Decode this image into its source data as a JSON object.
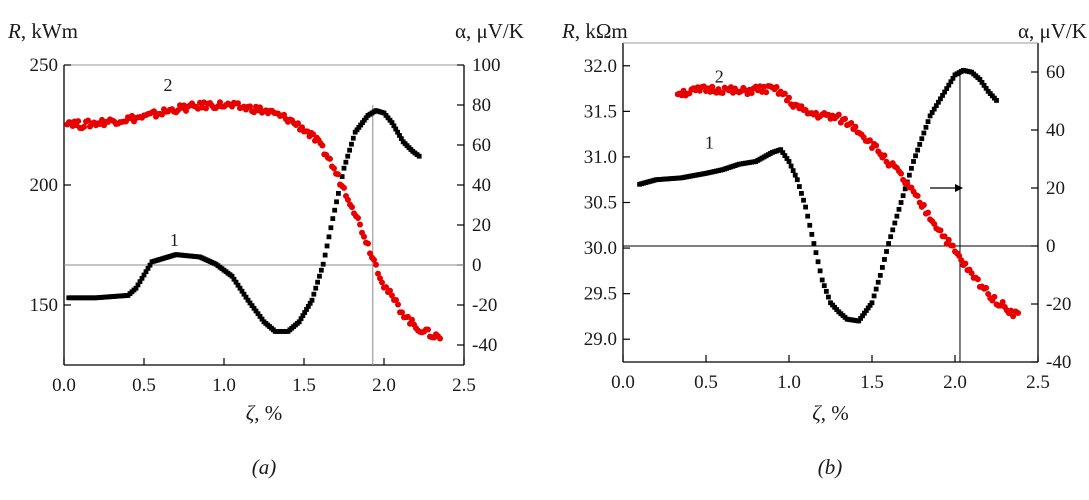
{
  "colors": {
    "series1": "#000000",
    "series2": "#e80000",
    "axis": "#000000"
  },
  "chart_data": [
    {
      "type": "scatter",
      "caption": "(a)",
      "xlabel": "ζ, %",
      "ylabel": "R, kWm",
      "y2label": "α, μV/K",
      "xlim": [
        0,
        2.5
      ],
      "ylim": [
        125,
        250
      ],
      "y2lim": [
        -50,
        100
      ],
      "xticks": [
        "0.0",
        "0.5",
        "1.0",
        "1.5",
        "2.0",
        "2.5"
      ],
      "yticks": [
        "150",
        "200",
        "250"
      ],
      "y2ticks": [
        "-40",
        "-20",
        "0",
        "20",
        "40",
        "60",
        "80",
        "100"
      ],
      "annotations": {
        "hline_y2": 0,
        "vline_x": 1.93
      },
      "series": [
        {
          "label": "1",
          "axis": "left",
          "color": "#000000",
          "marker": "square",
          "label_at": [
            0.69,
            173
          ],
          "x": [
            0.03,
            0.2,
            0.4,
            0.45,
            0.55,
            0.7,
            0.85,
            0.95,
            1.05,
            1.15,
            1.25,
            1.32,
            1.4,
            1.47,
            1.55,
            1.62,
            1.68,
            1.75,
            1.82,
            1.9,
            1.95,
            2.0,
            2.05,
            2.12,
            2.18,
            2.22
          ],
          "y": [
            153,
            153,
            154,
            157,
            168,
            171,
            170,
            167,
            162,
            152,
            143,
            139,
            139,
            143,
            152,
            167,
            186,
            207,
            222,
            229,
            231,
            230,
            226,
            218,
            214,
            212
          ]
        },
        {
          "label": "2",
          "axis": "right",
          "color": "#e80000",
          "marker": "circle",
          "label_at": [
            0.65,
            85
          ],
          "x": [
            0.02,
            0.1,
            0.2,
            0.3,
            0.4,
            0.5,
            0.6,
            0.7,
            0.8,
            0.9,
            1.0,
            1.1,
            1.2,
            1.3,
            1.4,
            1.5,
            1.58,
            1.65,
            1.7,
            1.75,
            1.8,
            1.85,
            1.9,
            1.95,
            2.0,
            2.05,
            2.1,
            2.15,
            2.2,
            2.25,
            2.3,
            2.35
          ],
          "y": [
            72,
            70,
            71,
            72,
            73,
            74,
            76,
            78,
            79,
            80,
            80,
            79,
            78,
            76,
            73,
            68,
            62,
            54,
            46,
            38,
            30,
            20,
            10,
            0,
            -10,
            -16,
            -22,
            -27,
            -31,
            -33,
            -35,
            -36
          ]
        }
      ]
    },
    {
      "type": "scatter",
      "caption": "(b)",
      "xlabel": "ζ, %",
      "ylabel": "R, kΩm",
      "y2label": "α, μV/K",
      "xlim": [
        0,
        2.5
      ],
      "ylim": [
        28.75,
        32.25
      ],
      "y2lim": [
        -40,
        70
      ],
      "xticks": [
        "0.0",
        "0.5",
        "1.0",
        "1.5",
        "2.0",
        "2.5"
      ],
      "yticks": [
        "29.0",
        "29.5",
        "30.0",
        "30.5",
        "31.0",
        "31.5",
        "32.0"
      ],
      "y2ticks": [
        "-40",
        "-20",
        "0",
        "20",
        "40",
        "60"
      ],
      "annotations": {
        "hline_y2": 0,
        "vline_x": 2.03,
        "arrow_x": [
          1.85,
          2.0
        ],
        "arrow_y2": 20
      },
      "series": [
        {
          "label": "1",
          "axis": "left",
          "color": "#000000",
          "marker": "square",
          "label_at": [
            0.52,
            31.05
          ],
          "x": [
            0.1,
            0.2,
            0.35,
            0.5,
            0.6,
            0.7,
            0.8,
            0.9,
            0.95,
            1.0,
            1.05,
            1.1,
            1.15,
            1.2,
            1.25,
            1.3,
            1.35,
            1.42,
            1.5,
            1.55,
            1.6,
            1.65,
            1.7,
            1.75,
            1.8,
            1.85,
            1.9,
            1.95,
            2.0,
            2.05,
            2.1,
            2.15,
            2.2,
            2.25
          ],
          "y": [
            30.7,
            30.75,
            30.77,
            30.82,
            30.86,
            30.92,
            30.95,
            31.05,
            31.08,
            30.95,
            30.75,
            30.45,
            30.05,
            29.65,
            29.4,
            29.3,
            29.22,
            29.2,
            29.4,
            29.7,
            30.05,
            30.35,
            30.65,
            30.95,
            31.2,
            31.45,
            31.6,
            31.75,
            31.9,
            31.95,
            31.93,
            31.85,
            31.72,
            31.62
          ]
        },
        {
          "label": "2",
          "axis": "right",
          "color": "#e80000",
          "marker": "circle",
          "label_at": [
            0.58,
            55
          ],
          "x": [
            0.33,
            0.4,
            0.5,
            0.6,
            0.7,
            0.8,
            0.9,
            0.95,
            1.0,
            1.05,
            1.1,
            1.2,
            1.3,
            1.4,
            1.45,
            1.5,
            1.55,
            1.6,
            1.65,
            1.7,
            1.75,
            1.8,
            1.85,
            1.9,
            1.95,
            2.0,
            2.05,
            2.1,
            2.15,
            2.2,
            2.25,
            2.3,
            2.35,
            2.38
          ],
          "y": [
            53,
            53,
            54,
            54,
            53,
            54,
            54,
            53,
            50,
            48,
            46,
            45,
            44,
            41,
            38,
            35,
            32,
            29,
            26,
            22,
            18,
            14,
            10,
            6,
            2,
            -2,
            -6,
            -10,
            -13,
            -16,
            -19,
            -21,
            -23,
            -24
          ]
        }
      ]
    }
  ]
}
